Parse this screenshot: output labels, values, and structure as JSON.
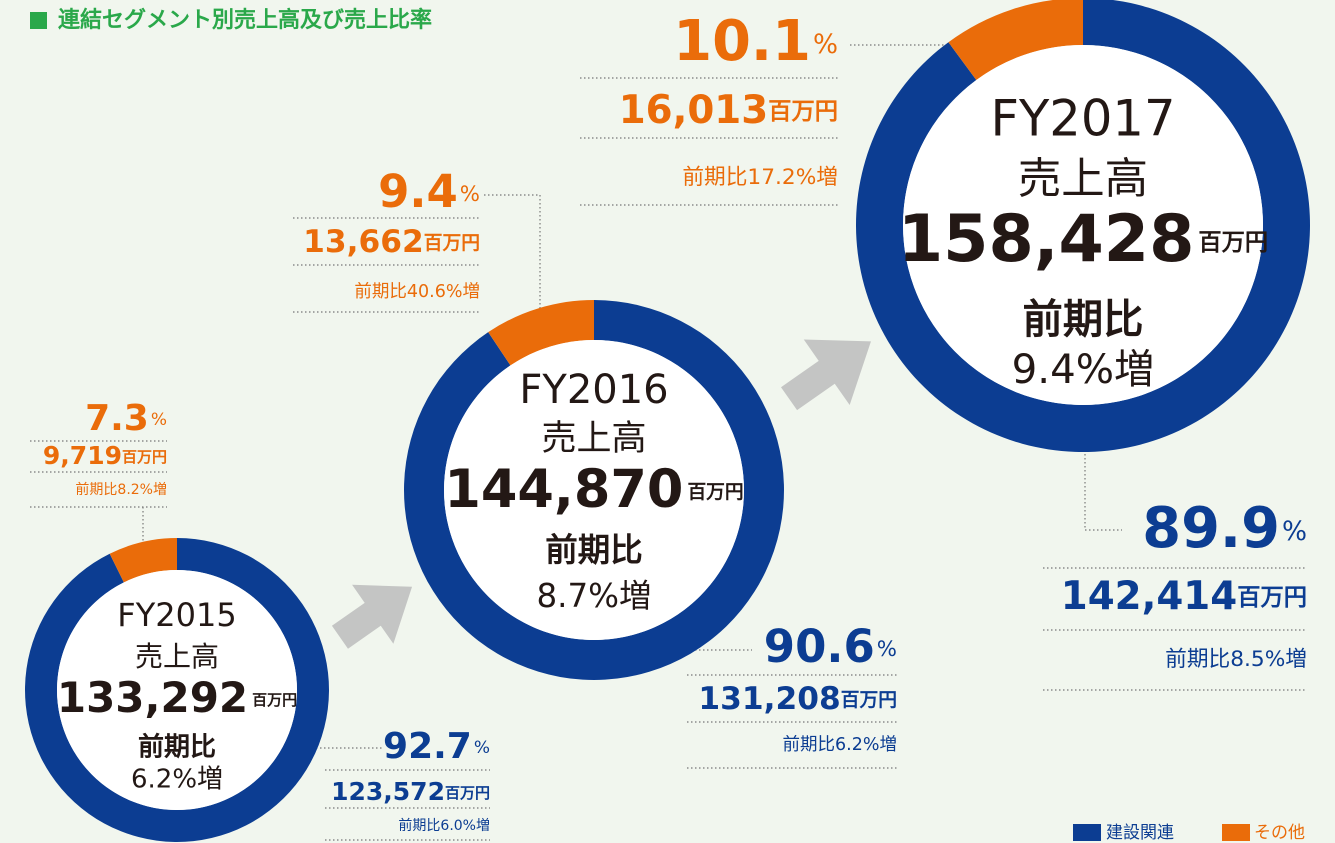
{
  "header": {
    "title": "連結セグメント別売上高及び売上比率"
  },
  "chart_data": [
    {
      "type": "donut",
      "title": "FY2015",
      "center_label": "売上高",
      "total": {
        "value": 133292,
        "label": "133,292"
      },
      "total_unit": "百万円",
      "growth_label": "前期比",
      "growth": "6.2%増",
      "categories": [
        "建設関連",
        "その他"
      ],
      "values": [
        92.7,
        7.3
      ],
      "value_unit": "%",
      "colors": [
        "#0c3d92",
        "#ea6c0a"
      ],
      "amounts": [
        {
          "value": 123572,
          "label": "123,572"
        },
        {
          "value": 9719,
          "label": "9,719"
        }
      ],
      "amount_unit": "百万円",
      "changes": [
        "前期比6.0%増",
        "前期比8.2%増"
      ]
    },
    {
      "type": "donut",
      "title": "FY2016",
      "center_label": "売上高",
      "total": {
        "value": 144870,
        "label": "144,870"
      },
      "total_unit": "百万円",
      "growth_label": "前期比",
      "growth": "8.7%増",
      "categories": [
        "建設関連",
        "その他"
      ],
      "values": [
        90.6,
        9.4
      ],
      "value_unit": "%",
      "colors": [
        "#0c3d92",
        "#ea6c0a"
      ],
      "amounts": [
        {
          "value": 131208,
          "label": "131,208"
        },
        {
          "value": 13662,
          "label": "13,662"
        }
      ],
      "amount_unit": "百万円",
      "changes": [
        "前期比6.2%増",
        "前期比40.6%増"
      ]
    },
    {
      "type": "donut",
      "title": "FY2017",
      "center_label": "売上高",
      "total": {
        "value": 158428,
        "label": "158,428"
      },
      "total_unit": "百万円",
      "growth_label": "前期比",
      "growth": "9.4%増",
      "categories": [
        "建設関連",
        "その他"
      ],
      "values": [
        89.9,
        10.1
      ],
      "value_unit": "%",
      "colors": [
        "#0c3d92",
        "#ea6c0a"
      ],
      "amounts": [
        {
          "value": 142414,
          "label": "142,414"
        },
        {
          "value": 16013,
          "label": "16,013"
        }
      ],
      "amount_unit": "百万円",
      "changes": [
        "前期比8.5%増",
        "前期比17.2%増"
      ]
    }
  ]
}
